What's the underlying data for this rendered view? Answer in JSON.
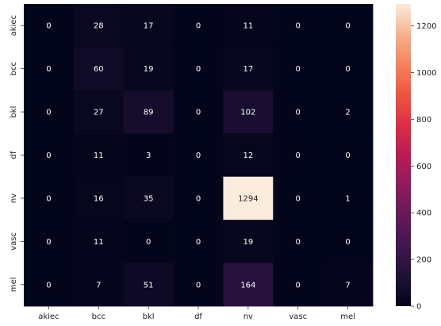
{
  "chart_data": {
    "type": "heatmap",
    "title": "",
    "xlabel": "",
    "ylabel": "",
    "x_categories": [
      "akiec",
      "bcc",
      "bkl",
      "df",
      "nv",
      "vasc",
      "mel"
    ],
    "y_categories": [
      "akiec",
      "bcc",
      "bkl",
      "df",
      "nv",
      "vasc",
      "mel"
    ],
    "values": [
      [
        0,
        28,
        17,
        0,
        11,
        0,
        0
      ],
      [
        0,
        60,
        19,
        0,
        17,
        0,
        0
      ],
      [
        0,
        27,
        89,
        0,
        102,
        0,
        2
      ],
      [
        0,
        11,
        3,
        0,
        12,
        0,
        0
      ],
      [
        0,
        16,
        35,
        0,
        1294,
        0,
        1
      ],
      [
        0,
        11,
        0,
        0,
        19,
        0,
        0
      ],
      [
        0,
        7,
        51,
        0,
        164,
        0,
        7
      ]
    ],
    "colorbar": {
      "min": 0,
      "max": 1294,
      "ticks": [
        0,
        200,
        400,
        600,
        800,
        1000,
        1200
      ],
      "colormap": "rocket"
    },
    "annotated": true,
    "grid": false
  }
}
